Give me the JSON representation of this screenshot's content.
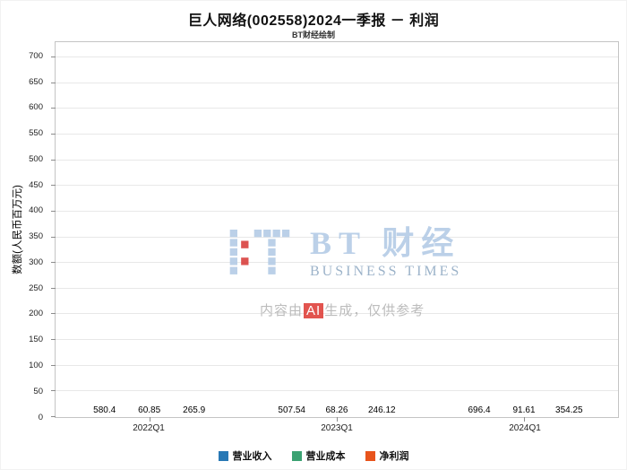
{
  "header": {
    "title": "巨人网络(002558)2024一季报 － 利润",
    "subtitle": "BT财经绘制"
  },
  "watermark": {
    "brand": "BT 财经",
    "brand_sub": "BUSINESS TIMES",
    "disclaimer_prefix": "内容由",
    "disclaimer_highlight": "AI",
    "disclaimer_suffix": "生成，仅供参考"
  },
  "chart_data": {
    "type": "bar",
    "title": "巨人网络(002558)2024一季报 － 利润",
    "subtitle": "BT财经绘制",
    "ylabel": "数额(人民币百万元)",
    "xlabel": "",
    "categories": [
      "2022Q1",
      "2023Q1",
      "2024Q1"
    ],
    "series": [
      {
        "name": "营业收入",
        "color": "#2878b5",
        "values": [
          580.4,
          507.54,
          696.4
        ]
      },
      {
        "name": "营业成本",
        "color": "#3ba272",
        "values": [
          60.85,
          68.26,
          91.61
        ]
      },
      {
        "name": "净利润",
        "color": "#e8541c",
        "values": [
          265.9,
          246.12,
          354.25
        ]
      }
    ],
    "ylim": [
      0,
      700
    ],
    "ytick_step": 50,
    "grid": true,
    "legend_position": "bottom"
  }
}
